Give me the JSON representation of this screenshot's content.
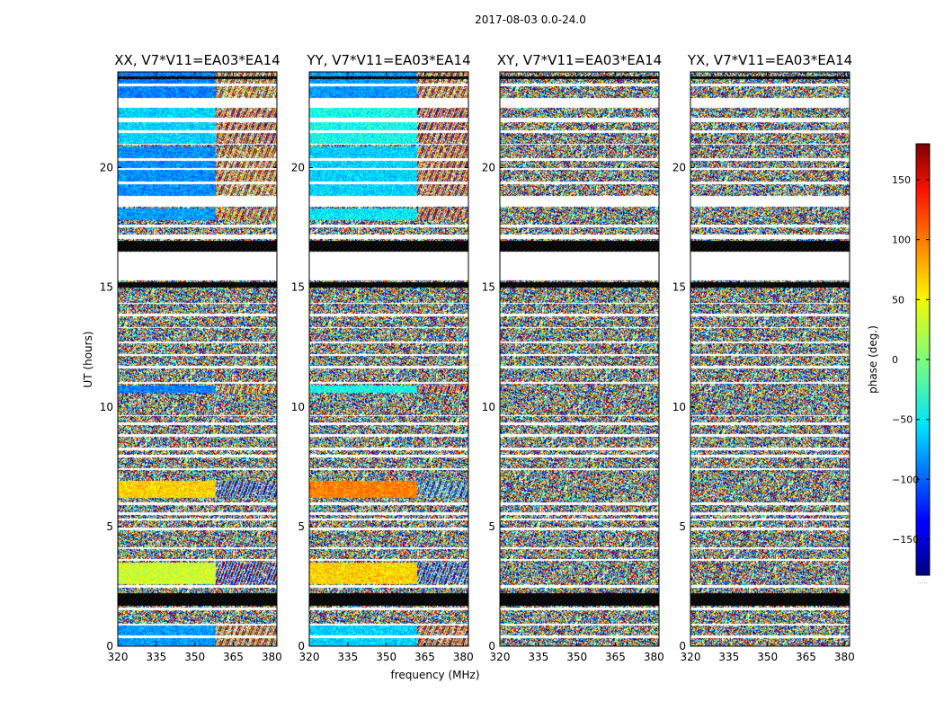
{
  "chart_data": {
    "type": "heatmap",
    "suptitle": "2017-08-03 0.0-24.0",
    "xlabel": "frequency (MHz)",
    "ylabel": "UT (hours)",
    "xlim": [
      320,
      382
    ],
    "ylim": [
      0,
      24
    ],
    "xticks": [
      320,
      335,
      350,
      365,
      380
    ],
    "yticks": [
      0,
      5,
      10,
      15,
      20
    ],
    "panels": [
      {
        "title": "XX, V7*V11=EA03*EA14",
        "correlation": "parallel",
        "coherent_hours": [
          [
            0.0,
            0.9
          ],
          [
            2.6,
            3.5
          ],
          [
            6.2,
            6.9
          ],
          [
            10.6,
            10.9
          ],
          [
            17.8,
            18.3
          ],
          [
            18.8,
            20.9
          ],
          [
            21.0,
            22.5
          ],
          [
            22.9,
            24.0
          ]
        ],
        "coherent_phase_deg": [
          -80,
          -85,
          30,
          60,
          60,
          -60,
          -90,
          -90,
          -80,
          -60,
          -85,
          -90,
          -60,
          -80,
          -90,
          -95
        ],
        "coherent_until_mhz": 358
      },
      {
        "title": "YY, V7*V11=EA03*EA14",
        "correlation": "parallel",
        "coherent_hours": [
          [
            0.0,
            0.9
          ],
          [
            2.6,
            3.5
          ],
          [
            6.2,
            6.9
          ],
          [
            10.6,
            10.9
          ],
          [
            17.8,
            18.3
          ],
          [
            18.8,
            20.9
          ],
          [
            21.0,
            22.5
          ],
          [
            22.9,
            24.0
          ]
        ],
        "coherent_phase_deg": [
          -60,
          -55,
          60,
          80,
          90,
          -20,
          -40,
          -70,
          -50,
          -20,
          -60,
          -70,
          -40,
          -60,
          -80,
          -90
        ],
        "coherent_until_mhz": 362
      },
      {
        "title": "XY, V7*V11=EA03*EA14",
        "correlation": "cross",
        "coherent_hours": [],
        "coherent_phase_deg": [],
        "coherent_until_mhz": 320
      },
      {
        "title": "YX, V7*V11=EA03*EA14",
        "correlation": "cross",
        "coherent_hours": [],
        "coherent_phase_deg": [],
        "coherent_until_mhz": 320
      }
    ],
    "flagged_hours": [
      [
        0.35,
        0.45
      ],
      [
        0.85,
        0.95
      ],
      [
        1.5,
        1.6
      ],
      [
        2.45,
        2.55
      ],
      [
        3.55,
        3.65
      ],
      [
        4.05,
        4.12
      ],
      [
        4.85,
        4.95
      ],
      [
        5.25,
        5.35
      ],
      [
        5.5,
        5.6
      ],
      [
        5.9,
        6.0
      ],
      [
        7.35,
        7.45
      ],
      [
        7.9,
        8.0
      ],
      [
        8.2,
        8.3
      ],
      [
        8.75,
        8.85
      ],
      [
        9.25,
        9.35
      ],
      [
        9.6,
        9.65
      ],
      [
        10.95,
        11.05
      ],
      [
        11.6,
        11.7
      ],
      [
        12.15,
        12.2
      ],
      [
        12.65,
        12.75
      ],
      [
        13.3,
        13.35
      ],
      [
        13.8,
        13.9
      ],
      [
        14.3,
        14.35
      ],
      [
        15.3,
        16.5
      ],
      [
        17.0,
        17.2
      ],
      [
        17.5,
        17.6
      ],
      [
        18.35,
        18.8
      ],
      [
        19.3,
        19.4
      ],
      [
        19.9,
        20.0
      ],
      [
        20.3,
        20.4
      ],
      [
        20.95,
        21.0
      ],
      [
        21.45,
        21.55
      ],
      [
        21.9,
        22.1
      ],
      [
        22.5,
        22.9
      ],
      [
        23.4,
        23.5
      ]
    ],
    "dark_hours": [
      [
        1.7,
        2.2
      ],
      [
        15.0,
        15.2
      ],
      [
        16.5,
        16.95
      ],
      [
        23.7,
        23.8
      ]
    ],
    "colorbar": {
      "label": "phase (deg.)",
      "range": [
        -180,
        180
      ],
      "ticks": [
        150,
        100,
        50,
        0,
        -50,
        -100,
        -150
      ],
      "tick_labels": [
        "150",
        "100",
        "50",
        "0",
        "−50",
        "−100",
        "−150"
      ],
      "colormap": "jet",
      "extra_label": "....."
    }
  }
}
